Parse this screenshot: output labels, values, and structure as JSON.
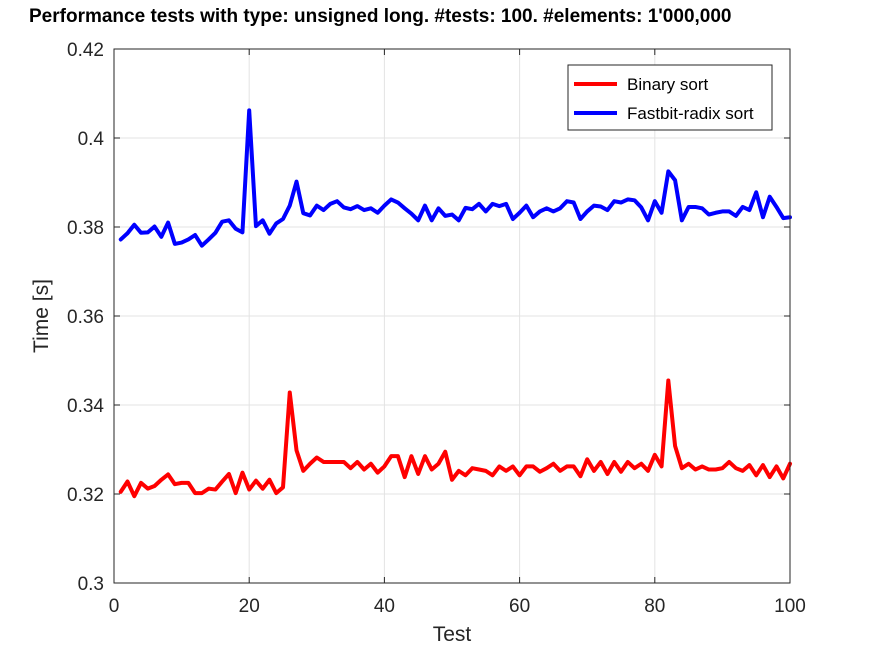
{
  "chart_data": {
    "type": "line",
    "title": "Performance tests with type: unsigned long. #tests: 100. #elements: 1'000,000",
    "xlabel": "Test",
    "ylabel": "Time [s]",
    "xlim": [
      0,
      100
    ],
    "ylim": [
      0.3,
      0.42
    ],
    "xticks": [
      0,
      20,
      40,
      60,
      80,
      100
    ],
    "yticks": [
      0.3,
      0.32,
      0.34,
      0.36,
      0.38,
      0.4,
      0.42
    ],
    "xtick_labels": [
      "0",
      "20",
      "40",
      "60",
      "80",
      "100"
    ],
    "ytick_labels": [
      "0.3",
      "0.32",
      "0.34",
      "0.36",
      "0.38",
      "0.4",
      "0.42"
    ],
    "grid": true,
    "legend_position": "top-right",
    "x": [
      1,
      2,
      3,
      4,
      5,
      6,
      7,
      8,
      9,
      10,
      11,
      12,
      13,
      14,
      15,
      16,
      17,
      18,
      19,
      20,
      21,
      22,
      23,
      24,
      25,
      26,
      27,
      28,
      29,
      30,
      31,
      32,
      33,
      34,
      35,
      36,
      37,
      38,
      39,
      40,
      41,
      42,
      43,
      44,
      45,
      46,
      47,
      48,
      49,
      50,
      51,
      52,
      53,
      54,
      55,
      56,
      57,
      58,
      59,
      60,
      61,
      62,
      63,
      64,
      65,
      66,
      67,
      68,
      69,
      70,
      71,
      72,
      73,
      74,
      75,
      76,
      77,
      78,
      79,
      80,
      81,
      82,
      83,
      84,
      85,
      86,
      87,
      88,
      89,
      90,
      91,
      92,
      93,
      94,
      95,
      96,
      97,
      98,
      99,
      100
    ],
    "series": [
      {
        "name": "Binary sort",
        "color": "#ff0000",
        "values": [
          0.3205,
          0.3228,
          0.3195,
          0.3225,
          0.3212,
          0.3218,
          0.3232,
          0.3244,
          0.3222,
          0.3225,
          0.3225,
          0.3202,
          0.3202,
          0.3212,
          0.321,
          0.3228,
          0.3245,
          0.3202,
          0.3248,
          0.321,
          0.323,
          0.3212,
          0.3232,
          0.3202,
          0.3215,
          0.3428,
          0.3298,
          0.3252,
          0.3268,
          0.3282,
          0.3272,
          0.3272,
          0.3272,
          0.3272,
          0.3258,
          0.3272,
          0.3255,
          0.3268,
          0.3248,
          0.3262,
          0.3285,
          0.3285,
          0.3238,
          0.3285,
          0.3245,
          0.3285,
          0.3255,
          0.3268,
          0.3295,
          0.3232,
          0.3252,
          0.3242,
          0.3258,
          0.3255,
          0.3252,
          0.3242,
          0.3262,
          0.3252,
          0.3262,
          0.3242,
          0.3262,
          0.3262,
          0.325,
          0.3258,
          0.3268,
          0.3252,
          0.3262,
          0.3262,
          0.324,
          0.3278,
          0.3252,
          0.3272,
          0.3245,
          0.3272,
          0.325,
          0.3272,
          0.3258,
          0.3268,
          0.3252,
          0.3288,
          0.3262,
          0.3455,
          0.3308,
          0.3258,
          0.3268,
          0.3255,
          0.3262,
          0.3255,
          0.3255,
          0.3258,
          0.3272,
          0.3258,
          0.3252,
          0.3265,
          0.3242,
          0.3265,
          0.3238,
          0.3262,
          0.3235,
          0.3268
        ]
      },
      {
        "name": "Fastbit-radix sort",
        "color": "#0000ff",
        "values": [
          0.3772,
          0.3786,
          0.3805,
          0.3787,
          0.3788,
          0.3801,
          0.3778,
          0.381,
          0.3762,
          0.3765,
          0.3772,
          0.3782,
          0.3758,
          0.3772,
          0.3787,
          0.3812,
          0.3815,
          0.3796,
          0.3788,
          0.4062,
          0.3802,
          0.3815,
          0.3785,
          0.3808,
          0.3818,
          0.3848,
          0.3902,
          0.3831,
          0.3826,
          0.3848,
          0.3838,
          0.3852,
          0.3858,
          0.3844,
          0.384,
          0.3847,
          0.3838,
          0.3842,
          0.3832,
          0.3848,
          0.3862,
          0.3855,
          0.3842,
          0.383,
          0.3815,
          0.3848,
          0.3815,
          0.3842,
          0.3825,
          0.3828,
          0.3815,
          0.3843,
          0.384,
          0.3852,
          0.3835,
          0.3852,
          0.3847,
          0.3852,
          0.3818,
          0.3832,
          0.3848,
          0.3822,
          0.3835,
          0.3842,
          0.3835,
          0.3842,
          0.3858,
          0.3855,
          0.3818,
          0.3835,
          0.3848,
          0.3846,
          0.3838,
          0.3858,
          0.3855,
          0.3862,
          0.386,
          0.3844,
          0.3815,
          0.3858,
          0.3832,
          0.3925,
          0.3905,
          0.3815,
          0.3845,
          0.3845,
          0.3842,
          0.3828,
          0.3832,
          0.3835,
          0.3835,
          0.3825,
          0.3845,
          0.3838,
          0.3878,
          0.3822,
          0.3868,
          0.3845,
          0.382,
          0.3822
        ]
      }
    ]
  }
}
